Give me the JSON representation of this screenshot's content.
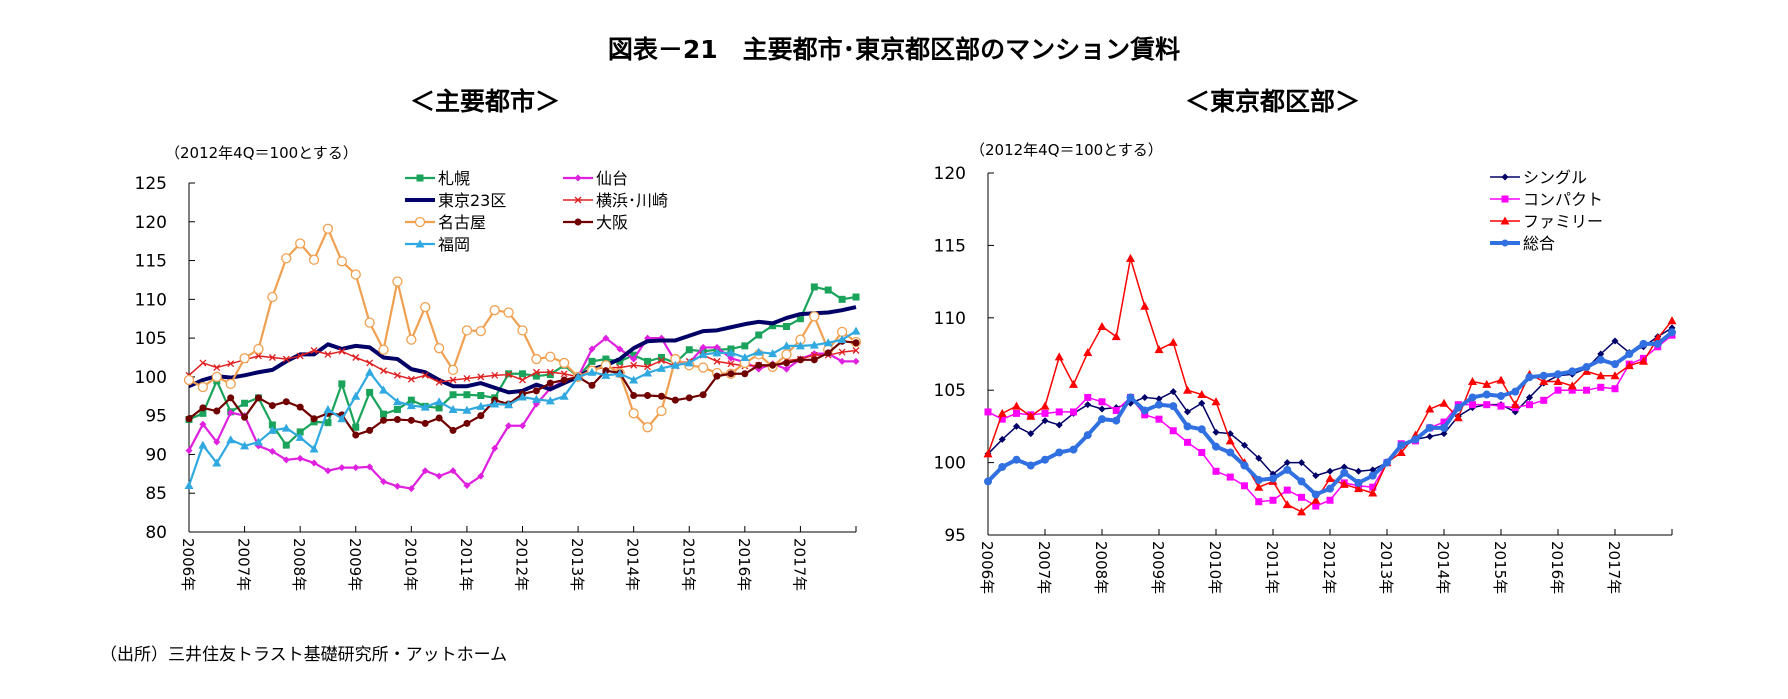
{
  "title": "図表－21　主要都市･東京都区部のマンション賃料",
  "source": "（出所）三井住友トラスト基礎研究所・アットホーム",
  "chart_data": [
    {
      "type": "line",
      "subtitle": "＜主要都市＞",
      "unit_note": "（2012年4Q＝100とする）",
      "ylim": [
        80,
        125
      ],
      "yticks": [
        80,
        85,
        90,
        95,
        100,
        105,
        110,
        115,
        120,
        125
      ],
      "xtick_labels": [
        "2006年",
        "2007年",
        "2008年",
        "2009年",
        "2010年",
        "2011年",
        "2012年",
        "2013年",
        "2014年",
        "2015年",
        "2016年",
        "2017年"
      ],
      "grid": false,
      "legend_placement": "top",
      "series": [
        {
          "name": "札幌",
          "color": "#1aa35a",
          "marker": "square",
          "values": [
            94.5,
            95.3,
            99.5,
            95.5,
            96.6,
            97.3,
            93.8,
            91.2,
            92.9,
            94.2,
            94.1,
            99.1,
            93.5,
            98,
            95.2,
            95.8,
            97,
            96.2,
            96,
            97.7,
            97.7,
            97.6,
            97.3,
            100.4,
            100.4,
            100.1,
            100.3,
            101.5,
            100,
            102,
            102.3,
            102,
            102.8,
            102,
            102.5,
            101.8,
            103.5,
            103.3,
            103.5,
            103.6,
            104,
            105.4,
            106.6,
            106.5,
            107.5,
            111.6,
            111.2,
            110,
            110.3
          ]
        },
        {
          "name": "仙台",
          "color": "#e020e0",
          "marker": "diamond",
          "values": [
            90.5,
            93.9,
            91.6,
            95.4,
            95,
            91.1,
            90.4,
            89.3,
            89.5,
            88.9,
            87.9,
            88.3,
            88.3,
            88.4,
            86.5,
            85.9,
            85.6,
            87.9,
            87.2,
            87.9,
            86,
            87.2,
            90.8,
            93.7,
            93.7,
            96.5,
            98.5,
            99.5,
            100,
            103.6,
            105,
            103.6,
            102.3,
            105,
            105,
            102,
            101.8,
            103.8,
            103.8,
            102.4,
            101.9,
            101,
            101.7,
            101,
            102.3,
            103,
            103,
            102,
            102
          ]
        },
        {
          "name": "東京23区",
          "color": "#000066",
          "marker": "none",
          "values": [
            98.8,
            99.6,
            100.1,
            99.9,
            100.2,
            100.6,
            100.9,
            102,
            102.9,
            102.9,
            104.2,
            103.6,
            104,
            103.8,
            102.5,
            102.3,
            101,
            100.6,
            99.6,
            98.8,
            98.8,
            99.2,
            98.6,
            98,
            98.2,
            99,
            98.4,
            99.2,
            100,
            101,
            101.5,
            102.3,
            103.7,
            104.6,
            104.7,
            104.7,
            105.3,
            105.9,
            106,
            106.4,
            106.8,
            107.1,
            106.9,
            107.6,
            108.1,
            108.2,
            108.3,
            108.6,
            109
          ]
        },
        {
          "name": "横浜･川崎",
          "color": "#e02020",
          "marker": "x",
          "values": [
            100.2,
            101.8,
            101.2,
            101.7,
            102.2,
            102.7,
            102.5,
            102.3,
            102.7,
            103.4,
            102.9,
            103.3,
            102.5,
            101.8,
            100.8,
            100.2,
            99.7,
            100.2,
            99.3,
            99.6,
            99.8,
            100,
            100.2,
            100.3,
            99.6,
            100.6,
            100.6,
            100.4,
            100,
            101,
            101.2,
            101.2,
            101.5,
            101.3,
            102.1,
            101.4,
            102,
            102.8,
            102,
            101.7,
            101.4,
            101.5,
            101.3,
            102.1,
            102.3,
            102.8,
            102.8,
            103.2,
            103.4
          ]
        },
        {
          "name": "名古屋",
          "color": "#f0a050",
          "marker": "open-circle",
          "values": [
            99.6,
            98.7,
            100,
            99.1,
            102.4,
            103.6,
            110.3,
            115.3,
            117.2,
            115.1,
            119.1,
            114.9,
            113.2,
            107,
            103.5,
            112.3,
            104.8,
            109,
            103.7,
            100.9,
            106,
            105.9,
            108.6,
            108.3,
            106,
            102.3,
            102.6,
            101.8,
            100,
            100.8,
            101.5,
            100.5,
            95.3,
            93.5,
            95.6,
            102.3,
            101.5,
            101.2,
            100.5,
            100.4,
            101.8,
            102.9,
            101.3,
            102.9,
            104.8,
            107.8,
            103.5,
            105.8,
            104.5
          ]
        },
        {
          "name": "大阪",
          "color": "#700000",
          "marker": "circle",
          "values": [
            94.6,
            96,
            95.6,
            97.3,
            94.8,
            97.3,
            96.3,
            96.8,
            96.1,
            94.6,
            95.3,
            95.1,
            92.5,
            93.1,
            94.4,
            94.5,
            94.4,
            94,
            94.7,
            93.1,
            94,
            95,
            97,
            96.5,
            97.8,
            98.2,
            99.2,
            99.6,
            100,
            98.9,
            100.8,
            100.5,
            97.6,
            97.6,
            97.5,
            97,
            97.3,
            97.7,
            100.1,
            100.4,
            100.4,
            101.5,
            101.5,
            101.8,
            102.2,
            102.2,
            103.1,
            104.6,
            104.4
          ]
        },
        {
          "name": "福岡",
          "color": "#30a8e0",
          "marker": "triangle",
          "values": [
            86,
            91.2,
            88.9,
            91.9,
            91.1,
            91.6,
            93.1,
            93.4,
            92.2,
            90.7,
            95.8,
            94.6,
            97.5,
            100.6,
            98.3,
            96.8,
            96.3,
            96.1,
            96.8,
            95.8,
            95.7,
            96.2,
            96.5,
            96.4,
            97.4,
            97.1,
            96.9,
            97.5,
            100,
            100.6,
            100.2,
            100.4,
            99.6,
            100.5,
            101.1,
            101.5,
            101.8,
            102.9,
            103.1,
            103.1,
            102.5,
            103.2,
            103,
            104,
            104,
            104.1,
            104.4,
            104.8,
            105.9
          ]
        }
      ]
    },
    {
      "type": "line",
      "subtitle": "＜東京都区部＞",
      "unit_note": "（2012年4Q＝100とする）",
      "ylim": [
        95,
        120
      ],
      "yticks": [
        95,
        100,
        105,
        110,
        115,
        120
      ],
      "xtick_labels": [
        "2006年",
        "2007年",
        "2008年",
        "2009年",
        "2010年",
        "2011年",
        "2012年",
        "2013年",
        "2014年",
        "2015年",
        "2016年",
        "2017年"
      ],
      "grid": false,
      "legend_placement": "top-right",
      "series": [
        {
          "name": "シングル",
          "color": "#000066",
          "marker": "diamond",
          "values": [
            100.6,
            101.6,
            102.5,
            102.0,
            102.9,
            102.6,
            103.4,
            104.0,
            103.7,
            103.8,
            104.1,
            104.5,
            104.4,
            104.9,
            103.5,
            104.1,
            102.1,
            102.0,
            101.2,
            100.3,
            99.2,
            100,
            100,
            99.1,
            99.4,
            99.7,
            99.4,
            99.5,
            100,
            101.3,
            101.6,
            101.8,
            102,
            103.2,
            103.8,
            104,
            104,
            103.5,
            104.5,
            105.5,
            106,
            106.1,
            106.5,
            107.5,
            108.4,
            107.6,
            108,
            108.7,
            109.3
          ]
        },
        {
          "name": "コンパクト",
          "color": "#ff00ff",
          "marker": "square",
          "values": [
            103.5,
            103,
            103.4,
            103.3,
            103.4,
            103.5,
            103.5,
            104.5,
            104.2,
            103.6,
            104.5,
            103.3,
            103.0,
            102.2,
            101.4,
            100.7,
            99.4,
            99,
            98.4,
            97.3,
            97.4,
            98.1,
            97.6,
            97,
            97.4,
            98.6,
            98.4,
            98.3,
            100,
            101.3,
            101.5,
            102.4,
            102.8,
            104,
            104,
            104,
            103.9,
            103.8,
            104,
            104.3,
            105,
            105,
            105,
            105.2,
            105.1,
            106.8,
            107.2,
            108,
            108.8
          ]
        },
        {
          "name": "ファミリー",
          "color": "#ff0000",
          "marker": "triangle",
          "values": [
            100.6,
            103.4,
            103.9,
            103.2,
            103.9,
            107.3,
            105.4,
            107.6,
            109.4,
            108.7,
            114.1,
            110.8,
            107.8,
            108.3,
            105,
            104.7,
            104.2,
            101.5,
            100,
            98.3,
            98.7,
            97.1,
            96.6,
            97.4,
            98.9,
            98.5,
            98.2,
            97.9,
            100,
            100.7,
            101.9,
            103.7,
            104.1,
            103.1,
            105.6,
            105.4,
            105.7,
            104,
            106.1,
            105.6,
            105.6,
            105.3,
            106.3,
            106,
            106,
            106.7,
            107,
            108.6,
            109.8
          ]
        },
        {
          "name": "総合",
          "color": "#3070e0",
          "marker": "circle",
          "values": [
            98.7,
            99.7,
            100.2,
            99.8,
            100.2,
            100.7,
            100.9,
            101.9,
            103,
            102.9,
            104.5,
            103.6,
            104,
            103.9,
            102.5,
            102.3,
            101.1,
            100.7,
            99.8,
            98.8,
            98.9,
            99.5,
            98.7,
            97.8,
            98.2,
            99.3,
            98.6,
            99.1,
            100,
            101.2,
            101.6,
            102.4,
            102.4,
            103.8,
            104.5,
            104.7,
            104.6,
            104.9,
            105.9,
            106,
            106.1,
            106.3,
            106.6,
            107.1,
            106.8,
            107.5,
            108.2,
            108.2,
            109
          ]
        }
      ]
    }
  ]
}
